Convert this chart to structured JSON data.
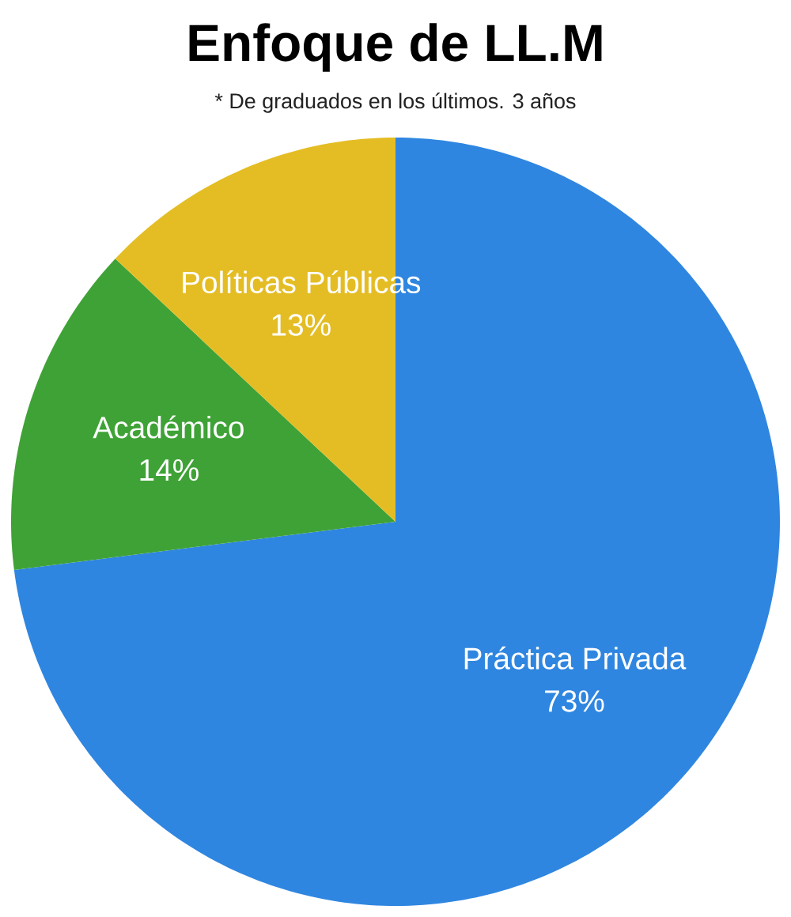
{
  "chart_data": {
    "type": "pie",
    "title": "Enfoque de LL.M",
    "subtitle": "* De graduados en los últimos. 3 años",
    "categories": [
      "Práctica Privada",
      "Académico",
      "Políticas Públicas"
    ],
    "values": [
      73,
      14,
      13
    ],
    "colors": [
      "#2f86e0",
      "#3fa236",
      "#e4bd24"
    ],
    "value_labels": [
      "73%",
      "14%",
      "13%"
    ]
  }
}
